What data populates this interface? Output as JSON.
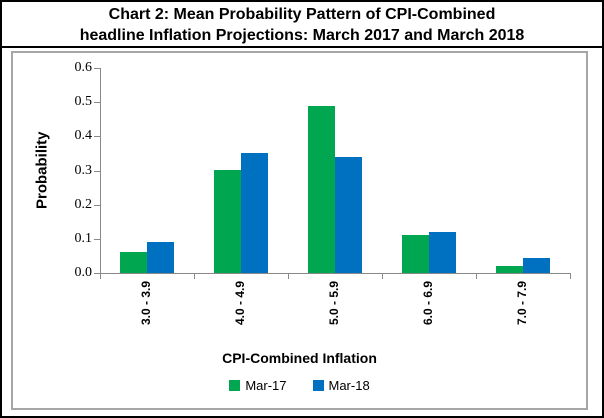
{
  "title": {
    "line1": "Chart 2: Mean Probability Pattern of CPI-Combined",
    "line2": "headline Inflation Projections: March 2017 and March 2018"
  },
  "chart_data": {
    "type": "bar",
    "title": "Chart 2: Mean Probability Pattern of CPI-Combined headline Inflation Projections: March 2017 and March 2018",
    "categories": [
      "3.0 - 3.9",
      "4.0 - 4.9",
      "5.0 - 5.9",
      "6.0 - 6.9",
      "7.0 - 7.9"
    ],
    "series": [
      {
        "name": "Mar-17",
        "color": "#00A650",
        "values": [
          0.06,
          0.3,
          0.49,
          0.11,
          0.02
        ]
      },
      {
        "name": "Mar-18",
        "color": "#0070C0",
        "values": [
          0.09,
          0.35,
          0.34,
          0.12,
          0.045
        ]
      }
    ],
    "xlabel": "CPI-Combined Inflation",
    "ylabel": "Probability",
    "ylim": [
      0.0,
      0.6
    ],
    "ytick_labels": [
      "0.0",
      "0.1",
      "0.2",
      "0.3",
      "0.4",
      "0.5",
      "0.6"
    ],
    "grid": false,
    "legend_position": "bottom",
    "axis_color": "#898989"
  }
}
